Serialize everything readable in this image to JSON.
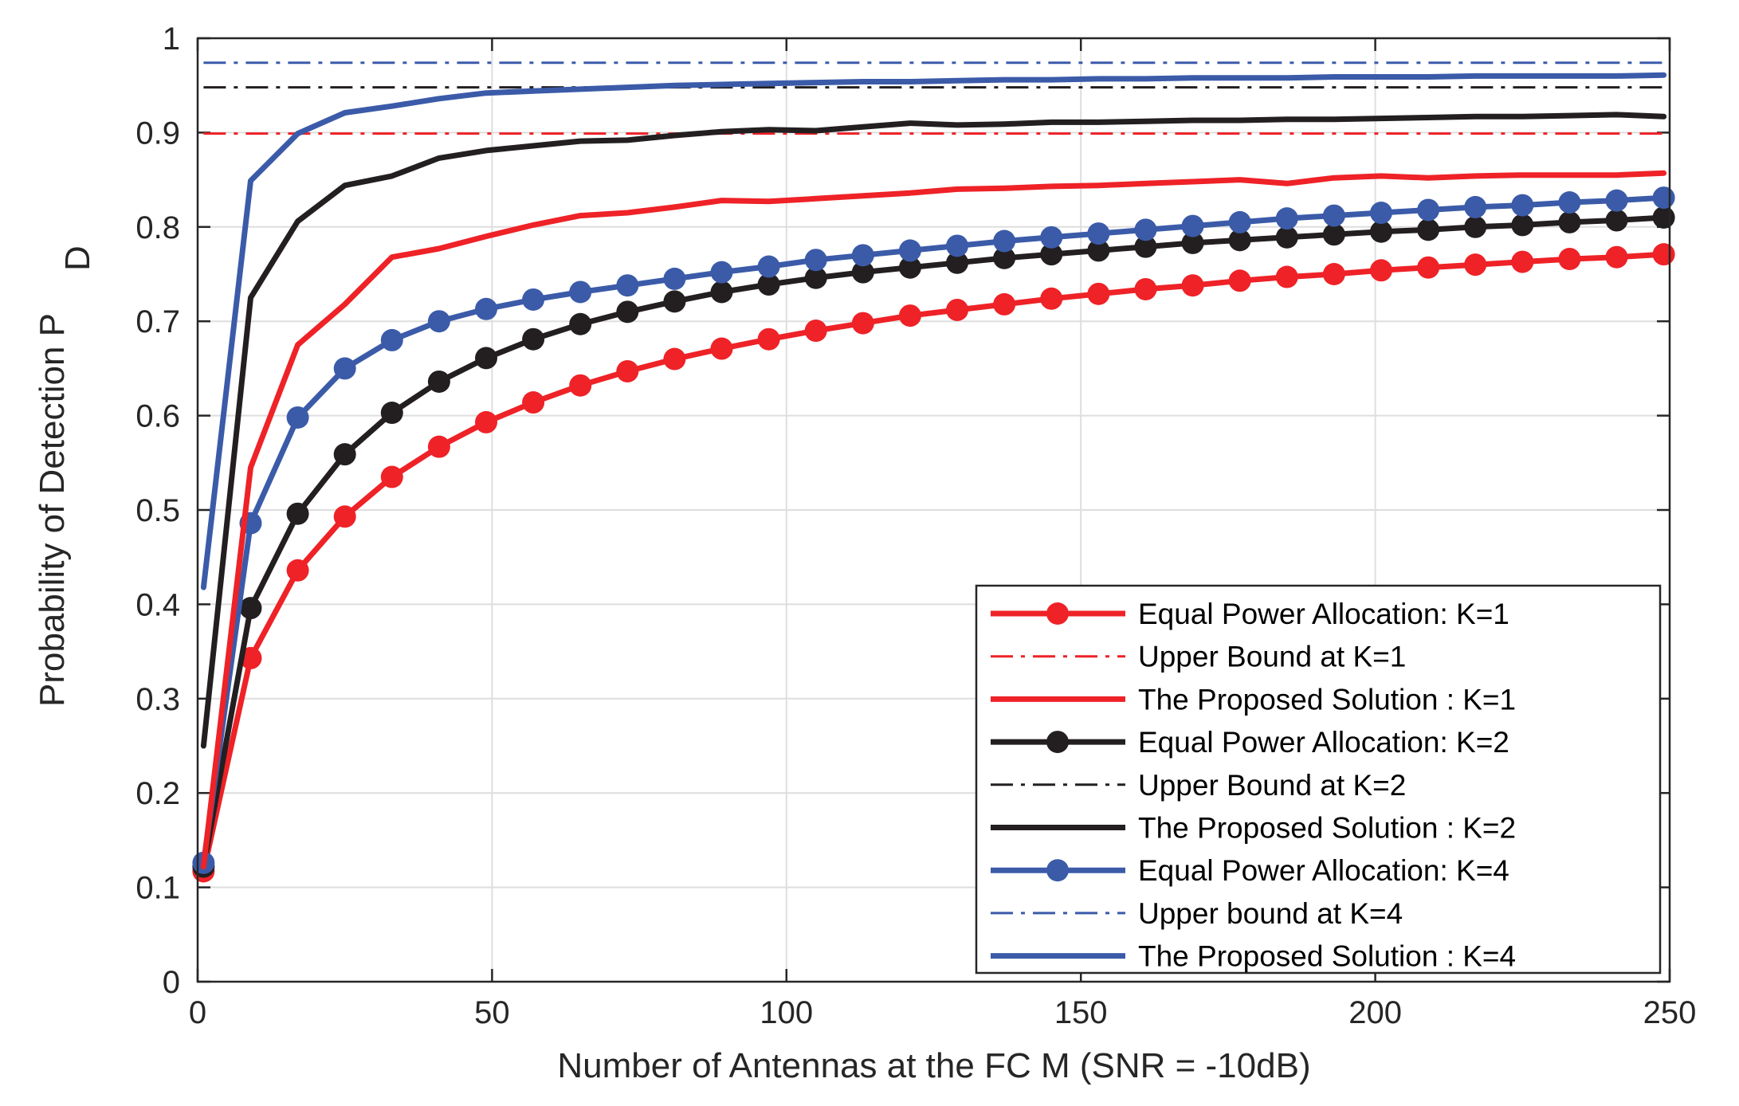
{
  "chart_data": {
    "type": "line",
    "title": "",
    "xlabel": "Number of Antennas at the FC M (SNR = -10dB)",
    "ylabel_main": "Probability of Detection P",
    "ylabel_sub": "D",
    "xlim": [
      0,
      250
    ],
    "ylim": [
      0,
      1
    ],
    "xticks": [
      0,
      50,
      100,
      150,
      200,
      250
    ],
    "xtick_labels": [
      "0",
      "50",
      "100",
      "150",
      "200",
      "250"
    ],
    "yticks": [
      0,
      0.1,
      0.2,
      0.3,
      0.4,
      0.5,
      0.6,
      0.7,
      0.8,
      0.9,
      1
    ],
    "ytick_labels": [
      "0",
      "0.1",
      "0.2",
      "0.3",
      "0.4",
      "0.5",
      "0.6",
      "0.7",
      "0.8",
      "0.9",
      "1"
    ],
    "grid": true,
    "legend_position": "bottom-right",
    "x": [
      1,
      9,
      17,
      25,
      33,
      41,
      49,
      57,
      65,
      73,
      81,
      89,
      97,
      105,
      113,
      121,
      129,
      137,
      145,
      153,
      161,
      169,
      177,
      185,
      193,
      201,
      209,
      217,
      225,
      233,
      241,
      249
    ],
    "series": [
      {
        "name": "Equal Power Allocation: K=1",
        "color": "#ee2227",
        "style": "solid-marker",
        "values": [
          0.117,
          0.343,
          0.436,
          0.493,
          0.535,
          0.567,
          0.593,
          0.614,
          0.632,
          0.647,
          0.66,
          0.671,
          0.681,
          0.69,
          0.698,
          0.706,
          0.712,
          0.718,
          0.724,
          0.729,
          0.734,
          0.738,
          0.743,
          0.747,
          0.75,
          0.754,
          0.757,
          0.76,
          0.763,
          0.766,
          0.768,
          0.771
        ]
      },
      {
        "name": "Upper Bound at K=1",
        "color": "#ee2227",
        "style": "dashdot",
        "values": [
          0.899,
          0.899,
          0.899,
          0.899,
          0.899,
          0.899,
          0.899,
          0.899,
          0.899,
          0.899,
          0.899,
          0.899,
          0.899,
          0.899,
          0.899,
          0.899,
          0.899,
          0.899,
          0.899,
          0.899,
          0.899,
          0.899,
          0.899,
          0.899,
          0.899,
          0.899,
          0.899,
          0.899,
          0.899,
          0.899,
          0.899,
          0.899
        ]
      },
      {
        "name": "The Proposed Solution : K=1",
        "color": "#ee2227",
        "style": "solid",
        "values": [
          0.122,
          0.545,
          0.675,
          0.718,
          0.768,
          0.777,
          0.79,
          0.802,
          0.812,
          0.815,
          0.821,
          0.828,
          0.827,
          0.83,
          0.833,
          0.836,
          0.84,
          0.841,
          0.843,
          0.844,
          0.846,
          0.848,
          0.85,
          0.846,
          0.852,
          0.854,
          0.852,
          0.854,
          0.855,
          0.855,
          0.855,
          0.857
        ]
      },
      {
        "name": "Equal Power Allocation: K=2",
        "color": "#231f20",
        "style": "solid-marker",
        "values": [
          0.122,
          0.396,
          0.496,
          0.559,
          0.603,
          0.636,
          0.661,
          0.681,
          0.697,
          0.71,
          0.721,
          0.731,
          0.739,
          0.746,
          0.752,
          0.757,
          0.762,
          0.767,
          0.771,
          0.775,
          0.779,
          0.783,
          0.786,
          0.789,
          0.792,
          0.795,
          0.797,
          0.8,
          0.802,
          0.805,
          0.807,
          0.81
        ]
      },
      {
        "name": "Upper Bound at K=2",
        "color": "#231f20",
        "style": "dashdot",
        "values": [
          0.948,
          0.948,
          0.948,
          0.948,
          0.948,
          0.948,
          0.948,
          0.948,
          0.948,
          0.948,
          0.948,
          0.948,
          0.948,
          0.948,
          0.948,
          0.948,
          0.948,
          0.948,
          0.948,
          0.948,
          0.948,
          0.948,
          0.948,
          0.948,
          0.948,
          0.948,
          0.948,
          0.948,
          0.948,
          0.948,
          0.948,
          0.948
        ]
      },
      {
        "name": "The Proposed Solution : K=2",
        "color": "#231f20",
        "style": "solid",
        "values": [
          0.25,
          0.725,
          0.806,
          0.844,
          0.854,
          0.873,
          0.881,
          0.886,
          0.891,
          0.892,
          0.897,
          0.901,
          0.903,
          0.902,
          0.906,
          0.91,
          0.908,
          0.909,
          0.911,
          0.911,
          0.912,
          0.913,
          0.913,
          0.914,
          0.914,
          0.915,
          0.916,
          0.917,
          0.917,
          0.918,
          0.919,
          0.917
        ]
      },
      {
        "name": "Equal Power Allocation: K=4",
        "color": "#3b5ba9",
        "style": "solid-marker",
        "values": [
          0.126,
          0.486,
          0.598,
          0.65,
          0.68,
          0.7,
          0.713,
          0.723,
          0.731,
          0.738,
          0.745,
          0.752,
          0.758,
          0.765,
          0.77,
          0.775,
          0.78,
          0.785,
          0.789,
          0.793,
          0.797,
          0.801,
          0.805,
          0.809,
          0.812,
          0.815,
          0.818,
          0.821,
          0.823,
          0.826,
          0.828,
          0.831
        ]
      },
      {
        "name": "Upper bound at K=4",
        "color": "#3b5ba9",
        "style": "dashdot",
        "values": [
          0.974,
          0.974,
          0.974,
          0.974,
          0.974,
          0.974,
          0.974,
          0.974,
          0.974,
          0.974,
          0.974,
          0.974,
          0.974,
          0.974,
          0.974,
          0.974,
          0.974,
          0.974,
          0.974,
          0.974,
          0.974,
          0.974,
          0.974,
          0.974,
          0.974,
          0.974,
          0.974,
          0.974,
          0.974,
          0.974,
          0.974,
          0.974
        ]
      },
      {
        "name": "The Proposed Solution : K=4",
        "color": "#3b5ba9",
        "style": "solid",
        "values": [
          0.418,
          0.849,
          0.899,
          0.921,
          0.928,
          0.936,
          0.942,
          0.944,
          0.946,
          0.948,
          0.95,
          0.951,
          0.952,
          0.953,
          0.954,
          0.954,
          0.955,
          0.956,
          0.956,
          0.957,
          0.957,
          0.958,
          0.958,
          0.958,
          0.959,
          0.959,
          0.959,
          0.96,
          0.96,
          0.96,
          0.96,
          0.961
        ]
      }
    ]
  }
}
